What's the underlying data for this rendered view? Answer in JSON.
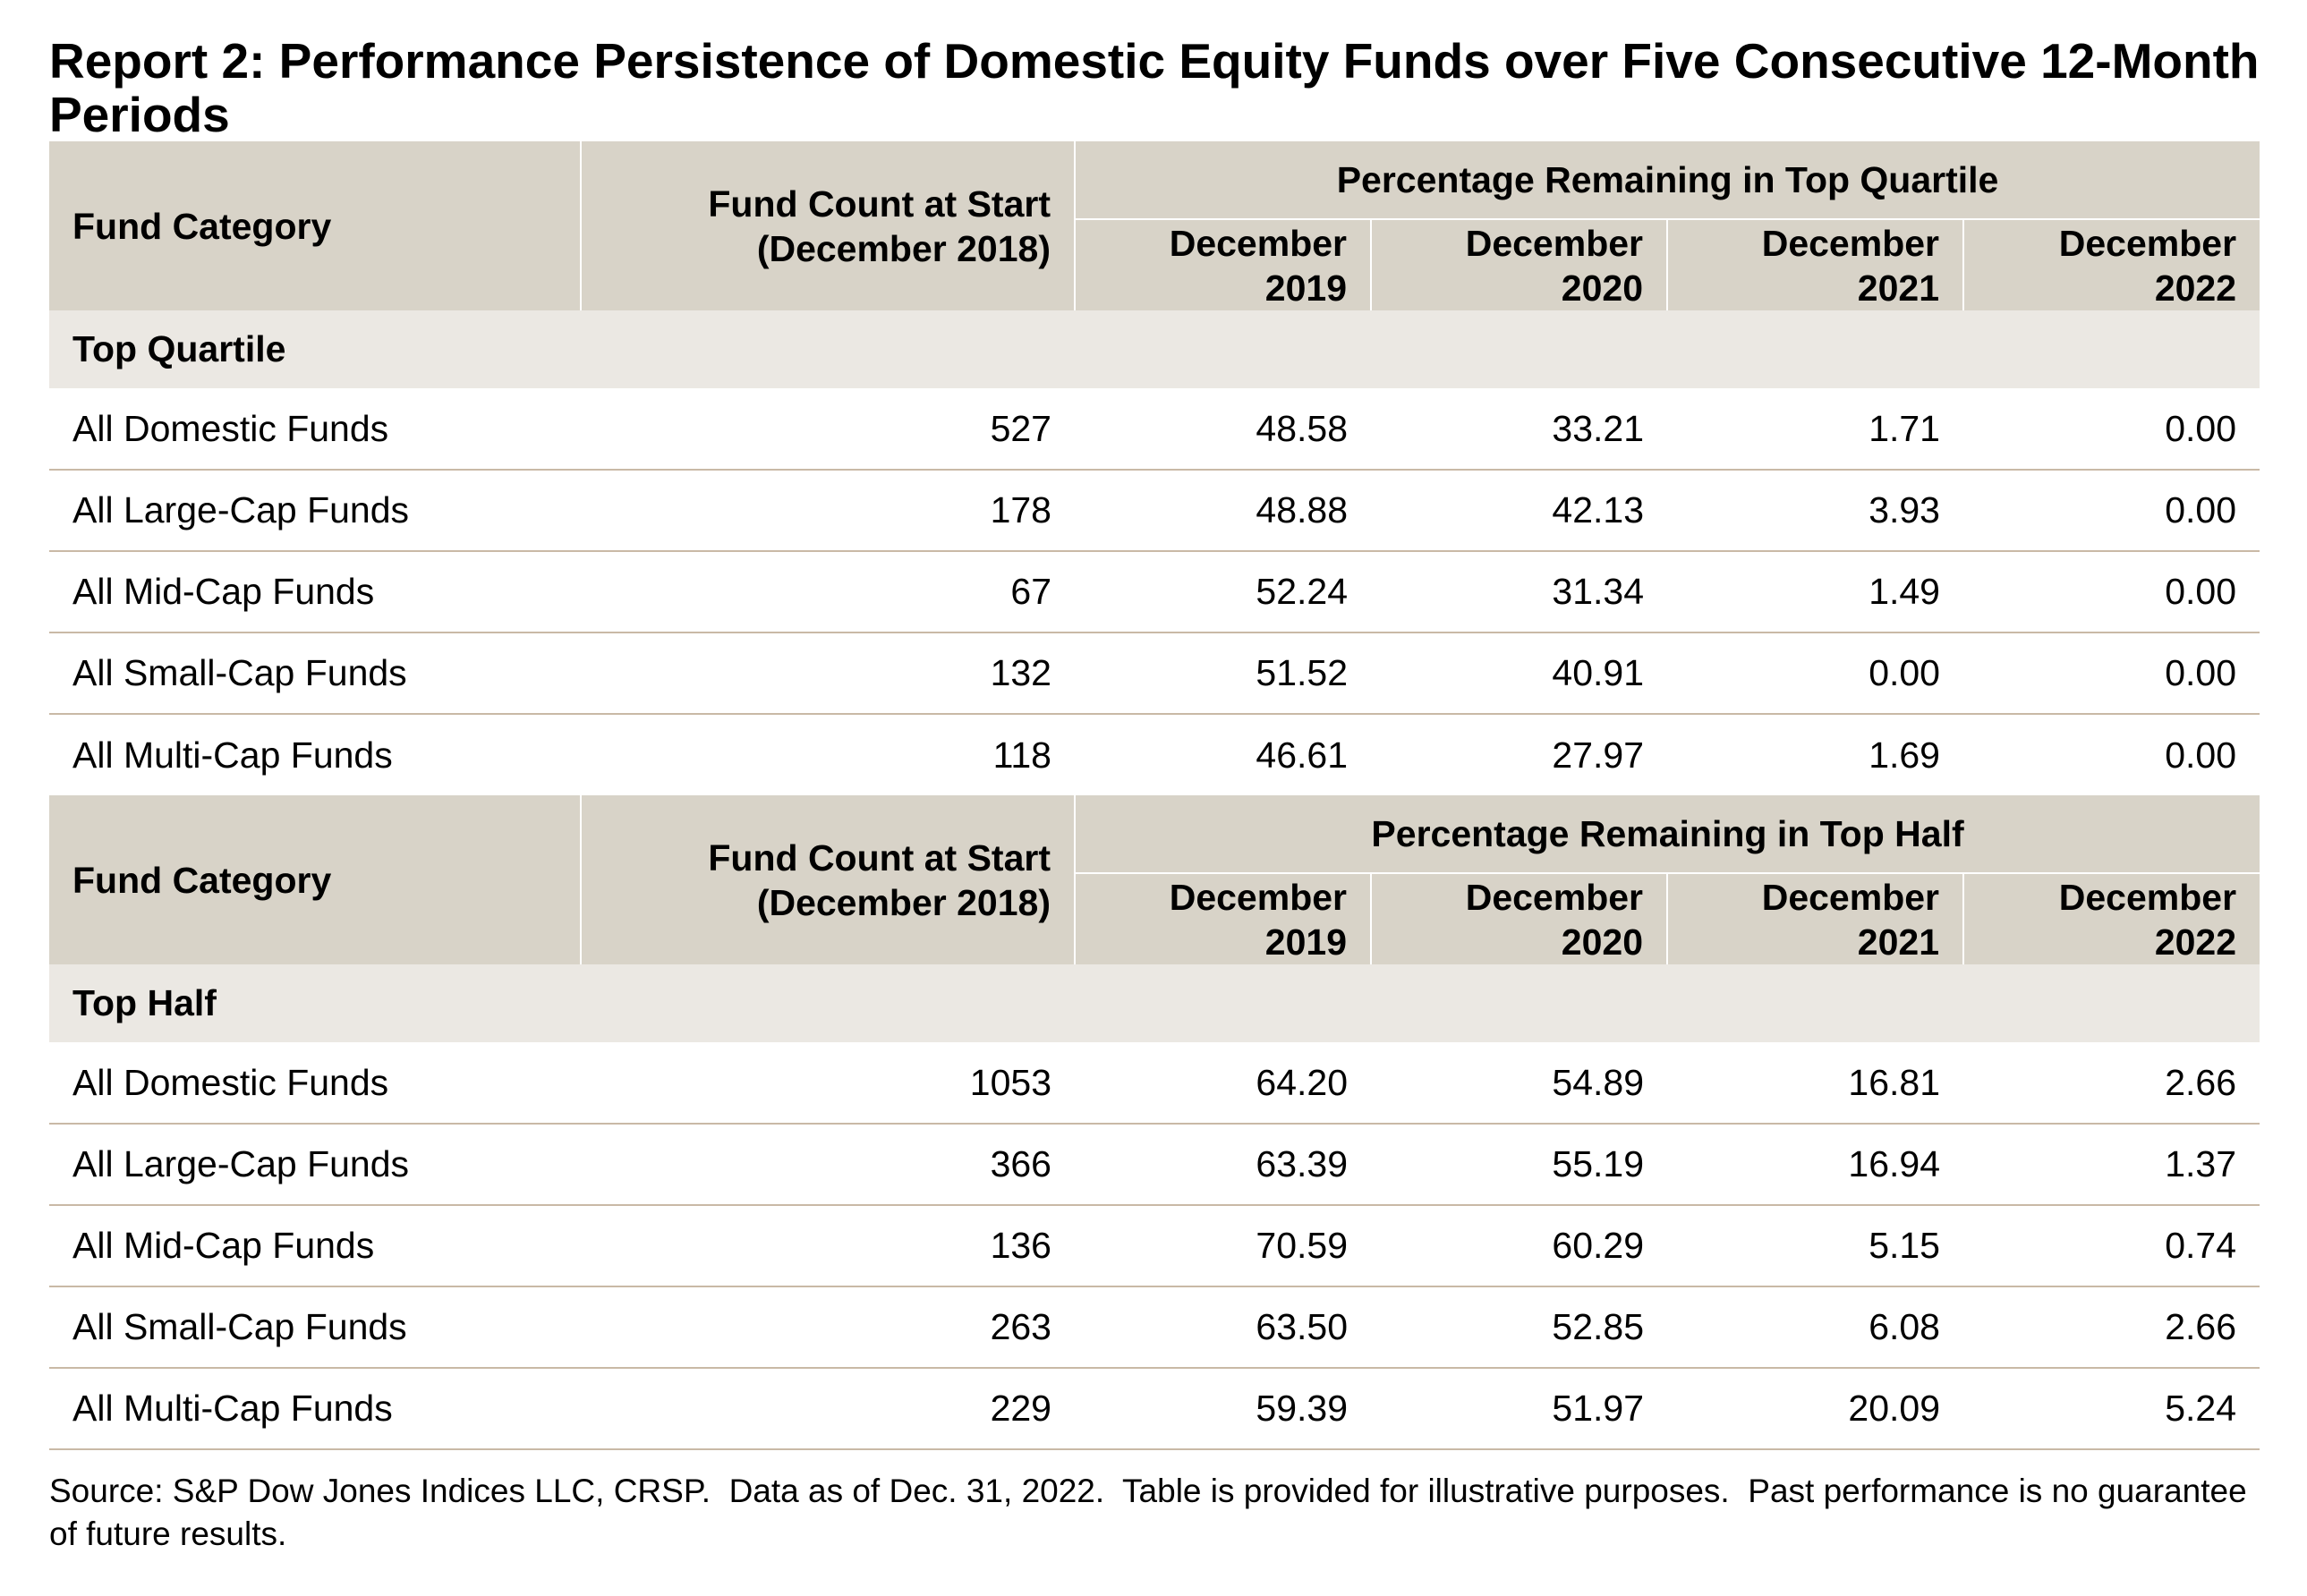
{
  "title": "Report 2: Performance Persistence of Domestic Equity Funds over Five Consecutive 12-Month Periods",
  "tables": [
    {
      "header": {
        "category": "Fund Category",
        "count_line1": "Fund Count at Start",
        "count_line2": "(December 2018)",
        "group": "Percentage Remaining in Top Quartile",
        "periods": [
          {
            "line1": "December",
            "line2": "2019"
          },
          {
            "line1": "December",
            "line2": "2020"
          },
          {
            "line1": "December",
            "line2": "2021"
          },
          {
            "line1": "December",
            "line2": "2022"
          }
        ]
      },
      "section": "Top Quartile",
      "rows": [
        {
          "name": "All Domestic Funds",
          "count": "527",
          "values": [
            "48.58",
            "33.21",
            "1.71",
            "0.00"
          ]
        },
        {
          "name": "All Large-Cap Funds",
          "count": "178",
          "values": [
            "48.88",
            "42.13",
            "3.93",
            "0.00"
          ]
        },
        {
          "name": "All Mid-Cap Funds",
          "count": "67",
          "values": [
            "52.24",
            "31.34",
            "1.49",
            "0.00"
          ]
        },
        {
          "name": "All Small-Cap Funds",
          "count": "132",
          "values": [
            "51.52",
            "40.91",
            "0.00",
            "0.00"
          ]
        },
        {
          "name": "All Multi-Cap Funds",
          "count": "118",
          "values": [
            "46.61",
            "27.97",
            "1.69",
            "0.00"
          ]
        }
      ]
    },
    {
      "header": {
        "category": "Fund Category",
        "count_line1": "Fund Count at Start",
        "count_line2": "(December 2018)",
        "group": "Percentage Remaining in Top Half",
        "periods": [
          {
            "line1": "December",
            "line2": "2019"
          },
          {
            "line1": "December",
            "line2": "2020"
          },
          {
            "line1": "December",
            "line2": "2021"
          },
          {
            "line1": "December",
            "line2": "2022"
          }
        ]
      },
      "section": "Top Half",
      "rows": [
        {
          "name": "All Domestic Funds",
          "count": "1053",
          "values": [
            "64.20",
            "54.89",
            "16.81",
            "2.66"
          ]
        },
        {
          "name": "All Large-Cap Funds",
          "count": "366",
          "values": [
            "63.39",
            "55.19",
            "16.94",
            "1.37"
          ]
        },
        {
          "name": "All Mid-Cap Funds",
          "count": "136",
          "values": [
            "70.59",
            "60.29",
            "5.15",
            "0.74"
          ]
        },
        {
          "name": "All Small-Cap Funds",
          "count": "263",
          "values": [
            "63.50",
            "52.85",
            "6.08",
            "2.66"
          ]
        },
        {
          "name": "All Multi-Cap Funds",
          "count": "229",
          "values": [
            "59.39",
            "51.97",
            "20.09",
            "5.24"
          ]
        }
      ]
    }
  ],
  "source": "Source: S&P Dow Jones Indices LLC, CRSP.  Data as of Dec. 31, 2022.  Table is provided for illustrative purposes.  Past performance is no guarantee of future results."
}
